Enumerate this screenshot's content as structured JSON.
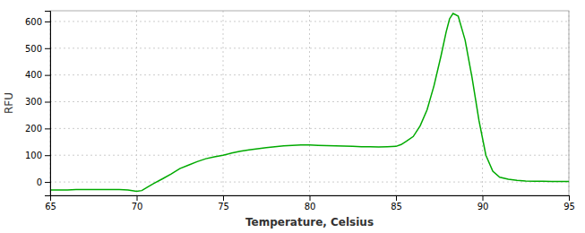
{
  "chart_data": {
    "type": "line",
    "xlabel": "Temperature, Celsius",
    "ylabel": "RFU",
    "color": "#00aa00",
    "grid": true,
    "xlim": [
      65,
      95
    ],
    "ylim": [
      -50,
      640
    ],
    "xticks": [
      65,
      70,
      75,
      80,
      85,
      90,
      95
    ],
    "yticks": [
      0,
      100,
      200,
      300,
      400,
      500,
      600
    ],
    "x": [
      65.0,
      65.3,
      65.6,
      66.0,
      66.5,
      67.0,
      67.5,
      68.0,
      68.5,
      69.0,
      69.5,
      70.0,
      70.3,
      70.6,
      71.0,
      71.5,
      72.0,
      72.5,
      73.0,
      73.5,
      74.0,
      74.5,
      75.0,
      75.5,
      76.0,
      76.5,
      77.0,
      77.5,
      78.0,
      78.5,
      79.0,
      79.5,
      80.0,
      80.5,
      81.0,
      81.5,
      82.0,
      82.5,
      83.0,
      83.5,
      84.0,
      84.5,
      85.0,
      85.3,
      85.6,
      86.0,
      86.4,
      86.8,
      87.2,
      87.6,
      87.9,
      88.1,
      88.3,
      88.6,
      89.0,
      89.4,
      89.8,
      90.2,
      90.6,
      91.0,
      91.5,
      92.0,
      92.5,
      93.0,
      93.5,
      94.0,
      94.5,
      95.0
    ],
    "values": [
      -30,
      -30,
      -30,
      -30,
      -28,
      -28,
      -28,
      -28,
      -28,
      -28,
      -30,
      -35,
      -32,
      -20,
      -5,
      12,
      30,
      50,
      63,
      76,
      87,
      94,
      100,
      108,
      115,
      120,
      124,
      128,
      132,
      135,
      137,
      138,
      138,
      137,
      136,
      135,
      134,
      133,
      132,
      132,
      131,
      132,
      133,
      140,
      152,
      170,
      210,
      270,
      360,
      470,
      560,
      610,
      630,
      620,
      530,
      390,
      230,
      100,
      40,
      18,
      10,
      6,
      4,
      3,
      3,
      2,
      2,
      2
    ]
  }
}
